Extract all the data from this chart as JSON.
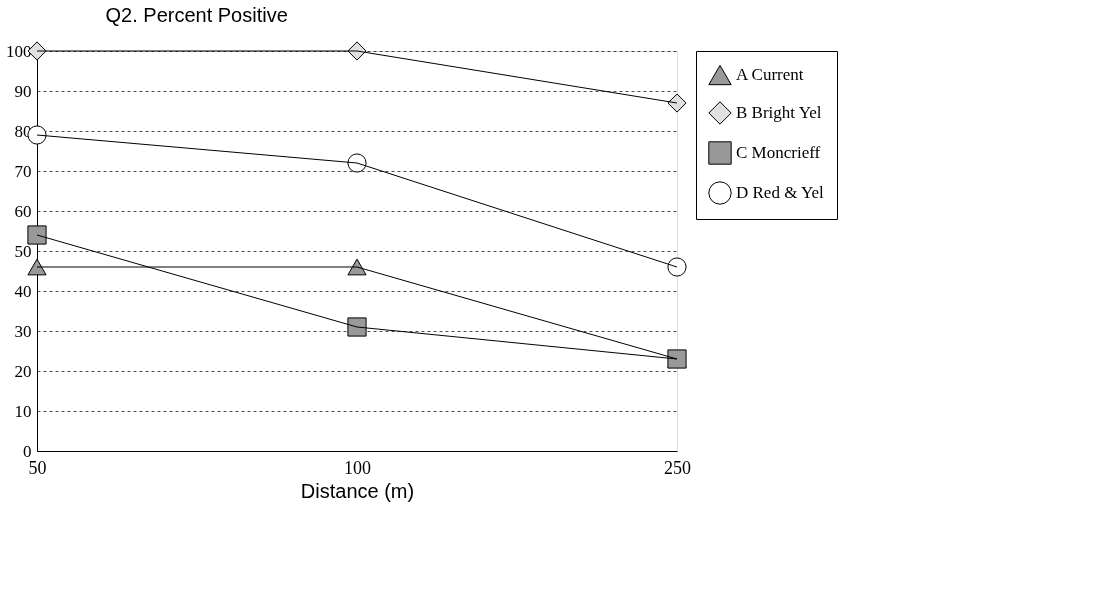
{
  "chart_data": {
    "type": "line",
    "title": "Q2. Percent Positive",
    "xlabel": "Distance (m)",
    "categories": [
      "50",
      "100",
      "250"
    ],
    "series": [
      {
        "name": "A Current",
        "color": "#999999",
        "marker": "triangle",
        "values": [
          46,
          46,
          23
        ]
      },
      {
        "name": "B Bright Yel",
        "color": "#e0e0e0",
        "marker": "diamond",
        "values": [
          100,
          100,
          87
        ]
      },
      {
        "name": "C Moncrieff",
        "color": "#999999",
        "marker": "square",
        "values": [
          54,
          31,
          23
        ]
      },
      {
        "name": "D Red & Yel",
        "color": "#ffffff",
        "marker": "circle",
        "values": [
          79,
          72,
          46
        ]
      }
    ],
    "ylim": [
      0,
      100
    ],
    "yticks": [
      0,
      10,
      20,
      30,
      40,
      50,
      60,
      70,
      80,
      90,
      100
    ],
    "grid": "y",
    "legend": "right",
    "line_style": "solid"
  }
}
